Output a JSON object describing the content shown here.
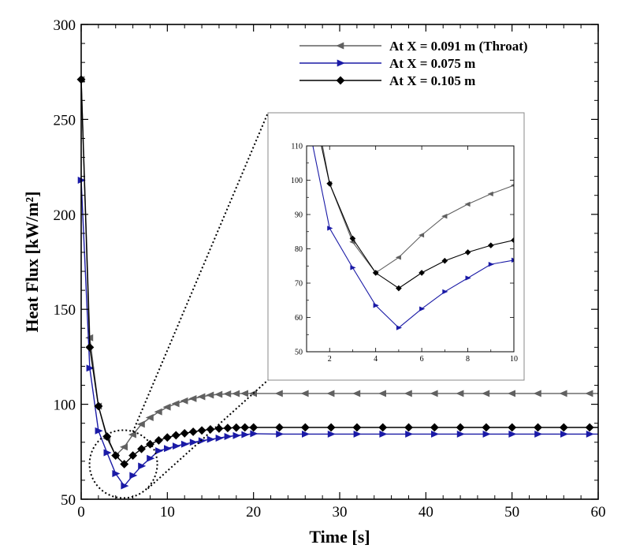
{
  "chart_data": {
    "type": "line",
    "xlabel": "Time [s]",
    "ylabel": "Heat Flux [kW/m²]",
    "xlim": [
      0,
      60
    ],
    "ylim": [
      50,
      300
    ],
    "xticks": [
      "0",
      "10",
      "20",
      "30",
      "40",
      "50",
      "60"
    ],
    "yticks": [
      "50",
      "100",
      "150",
      "200",
      "250",
      "300"
    ],
    "legend_position": "top-right",
    "series": [
      {
        "name": "At X = 0.091 m (Throat)",
        "label": "At X = 0.091 m (Throat)",
        "color": "#606060",
        "marker": "triangle-left",
        "x": [
          0,
          1,
          2,
          3,
          4,
          5,
          6,
          7,
          8,
          9,
          10,
          11,
          12,
          13,
          14,
          15,
          16,
          17,
          18,
          19,
          20,
          23,
          26,
          29,
          32,
          35,
          38,
          41,
          44,
          47,
          50,
          53,
          56,
          59,
          60
        ],
        "y": [
          271,
          135,
          99,
          82,
          73,
          77.5,
          84,
          89.5,
          93,
          96,
          98.5,
          100.3,
          101.8,
          103,
          104,
          104.8,
          105.2,
          105.5,
          105.6,
          105.7,
          105.7,
          105.7,
          105.7,
          105.7,
          105.7,
          105.7,
          105.7,
          105.7,
          105.7,
          105.7,
          105.7,
          105.7,
          105.7,
          105.7,
          105.7
        ]
      },
      {
        "name": "At X = 0.075 m",
        "label": "At X = 0.075 m",
        "color": "#1a1aa6",
        "marker": "triangle-right",
        "x": [
          0,
          1,
          2,
          3,
          4,
          5,
          6,
          7,
          8,
          9,
          10,
          11,
          12,
          13,
          14,
          15,
          16,
          17,
          18,
          19,
          20,
          23,
          26,
          29,
          32,
          35,
          38,
          41,
          44,
          47,
          50,
          53,
          56,
          59,
          60
        ],
        "y": [
          218,
          119,
          86,
          74.5,
          63.5,
          57,
          62.5,
          67.5,
          71.5,
          75.5,
          76.7,
          78,
          79,
          80,
          80.8,
          81.5,
          82.2,
          83,
          83.5,
          84,
          84.5,
          84.3,
          84.3,
          84.3,
          84.3,
          84.3,
          84.3,
          84.3,
          84.3,
          84.3,
          84.3,
          84.3,
          84.3,
          84.3,
          84.3
        ]
      },
      {
        "name": "At X = 0.105 m",
        "label": "At X = 0.105 m",
        "color": "#000000",
        "marker": "diamond",
        "x": [
          0,
          1,
          2,
          3,
          4,
          5,
          6,
          7,
          8,
          9,
          10,
          11,
          12,
          13,
          14,
          15,
          16,
          17,
          18,
          19,
          20,
          23,
          26,
          29,
          32,
          35,
          38,
          41,
          44,
          47,
          50,
          53,
          56,
          59,
          60
        ],
        "y": [
          271,
          130,
          99,
          83,
          73,
          68.5,
          73,
          76.5,
          79,
          81,
          82.5,
          83.7,
          84.7,
          85.5,
          86.2,
          86.8,
          87.2,
          87.5,
          87.7,
          87.8,
          87.8,
          87.8,
          87.8,
          87.8,
          87.8,
          87.8,
          87.8,
          87.8,
          87.8,
          87.8,
          87.8,
          87.8,
          87.8,
          87.8,
          87.8
        ]
      }
    ],
    "inset": {
      "xlim": [
        1,
        10
      ],
      "ylim": [
        50,
        110
      ],
      "xticks": [
        "2",
        "4",
        "6",
        "8",
        "10"
      ],
      "yticks": [
        "50",
        "60",
        "70",
        "80",
        "90",
        "100",
        "110"
      ],
      "zoom_region": "t = 2–8 s around the minimum"
    }
  }
}
